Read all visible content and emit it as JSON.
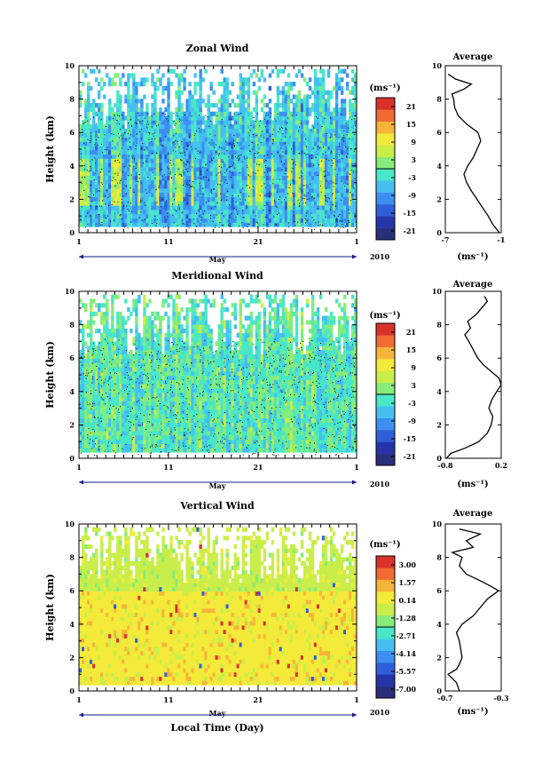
{
  "chart_data": [
    {
      "type": "heatmap",
      "title": "Zonal Wind",
      "ylabel": "Height (km)",
      "ylim": [
        0,
        10
      ],
      "yticks": [
        "0",
        "2",
        "4",
        "6",
        "8",
        "10"
      ],
      "xlim": [
        1,
        32
      ],
      "xticks": [
        "1",
        "11",
        "21",
        "1"
      ],
      "xlabel": "May",
      "year": "2010",
      "colorbar": {
        "unit": "(ms⁻¹)",
        "range": [
          -24,
          24
        ],
        "tick_values": [
          21,
          15,
          9,
          3,
          -3,
          -9,
          -15,
          -21
        ],
        "tick_labels": [
          "21",
          "15",
          "9",
          "3",
          "-3",
          "-9",
          "-15",
          "-21"
        ]
      },
      "profile": {
        "title": "Average",
        "xlim": [
          -7,
          -1
        ],
        "xtick_labels": [
          "-7",
          "-1"
        ],
        "xlabel": "(ms⁻¹)",
        "yticks": [
          "0",
          "2",
          "4",
          "6",
          "8",
          "10"
        ],
        "heights": [
          0.0,
          0.5,
          1.0,
          1.5,
          2.0,
          2.5,
          3.0,
          3.5,
          4.0,
          4.5,
          5.0,
          5.5,
          6.0,
          6.5,
          7.0,
          7.5,
          8.0,
          8.3,
          8.6,
          8.9,
          9.2,
          9.5
        ],
        "values": [
          -1.2,
          -1.9,
          -2.4,
          -3.0,
          -3.6,
          -4.2,
          -4.7,
          -5.0,
          -4.6,
          -4.0,
          -3.6,
          -3.2,
          -3.5,
          -4.7,
          -5.6,
          -6.0,
          -6.1,
          -6.3,
          -5.0,
          -4.2,
          -5.9,
          -6.7
        ]
      },
      "style": "zonal"
    },
    {
      "type": "heatmap",
      "title": "Meridional Wind",
      "ylabel": "Height (km)",
      "ylim": [
        0,
        10
      ],
      "yticks": [
        "0",
        "2",
        "4",
        "6",
        "8",
        "10"
      ],
      "xlim": [
        1,
        32
      ],
      "xticks": [
        "1",
        "11",
        "21",
        "1"
      ],
      "xlabel": "May",
      "year": "2010",
      "colorbar": {
        "unit": "(ms⁻¹)",
        "range": [
          -24,
          24
        ],
        "tick_values": [
          21,
          15,
          9,
          3,
          -3,
          -9,
          -15,
          -21
        ],
        "tick_labels": [
          "21",
          "15",
          "9",
          "3",
          "-3",
          "-9",
          "-15",
          "-21"
        ]
      },
      "profile": {
        "title": "Average",
        "xlim": [
          -0.8,
          0.2
        ],
        "xtick_labels": [
          "-0.8",
          "0.2"
        ],
        "xlabel": "(ms⁻¹)",
        "yticks": [
          "0",
          "2",
          "4",
          "6",
          "8",
          "10"
        ],
        "heights": [
          0.0,
          0.3,
          0.6,
          1.0,
          1.5,
          2.0,
          2.5,
          3.0,
          3.5,
          4.0,
          4.4,
          4.8,
          5.2,
          5.6,
          6.0,
          6.5,
          7.0,
          7.4,
          7.8,
          8.2,
          8.6,
          9.0,
          9.4,
          9.7
        ],
        "values": [
          -0.78,
          -0.7,
          -0.45,
          -0.2,
          -0.05,
          0.02,
          0.05,
          -0.02,
          0.03,
          0.12,
          0.2,
          0.16,
          0.02,
          -0.12,
          -0.22,
          -0.3,
          -0.38,
          -0.45,
          -0.35,
          -0.4,
          -0.25,
          -0.15,
          -0.05,
          -0.1
        ]
      },
      "style": "meridional"
    },
    {
      "type": "heatmap",
      "title": "Vertical Wind",
      "ylabel": "Height (km)",
      "ylim": [
        0,
        10
      ],
      "yticks": [
        "0",
        "2",
        "4",
        "6",
        "8",
        "10"
      ],
      "xlim": [
        1,
        32
      ],
      "xticks": [
        "1",
        "11",
        "21",
        "1"
      ],
      "xlabel": "May",
      "year": "2010",
      "colorbar": {
        "unit": "(ms⁻¹)",
        "range": [
          -7.72,
          3.72
        ],
        "tick_values": [
          3.0,
          1.57,
          0.14,
          -1.28,
          -2.71,
          -4.14,
          -5.57,
          -7.0
        ],
        "tick_labels": [
          "3.00",
          "1.57",
          "0.14",
          "-1.28",
          "-2.71",
          "-4.14",
          "-5.57",
          "-7.00"
        ]
      },
      "profile": {
        "title": "Average",
        "xlim": [
          -0.7,
          -0.3
        ],
        "xtick_labels": [
          "-0.7",
          "-0.3"
        ],
        "xlabel": "(ms⁻¹)",
        "yticks": [
          "0",
          "2",
          "4",
          "6",
          "8",
          "10"
        ],
        "heights": [
          0.0,
          0.5,
          1.0,
          1.3,
          1.6,
          2.0,
          3.0,
          3.5,
          4.0,
          4.5,
          5.0,
          5.5,
          6.0,
          6.3,
          6.6,
          7.0,
          7.5,
          8.0,
          8.3,
          8.6,
          9.0,
          9.4,
          9.7
        ],
        "values": [
          -0.6,
          -0.62,
          -0.68,
          -0.62,
          -0.6,
          -0.58,
          -0.6,
          -0.62,
          -0.58,
          -0.5,
          -0.45,
          -0.4,
          -0.32,
          -0.38,
          -0.45,
          -0.55,
          -0.6,
          -0.58,
          -0.65,
          -0.5,
          -0.55,
          -0.45,
          -0.6
        ]
      },
      "style": "vertical"
    }
  ],
  "figure": {
    "bottom_xlabel": "Local Time (Day)"
  },
  "colors": {
    "colormap": [
      "#2a2f7a",
      "#2535a8",
      "#2f5fd8",
      "#3c8ff0",
      "#45bff0",
      "#49e6c8",
      "#86ec7a",
      "#c9ee4a",
      "#f3ea3a",
      "#f7b43a",
      "#f16b32",
      "#d8322a"
    ]
  }
}
